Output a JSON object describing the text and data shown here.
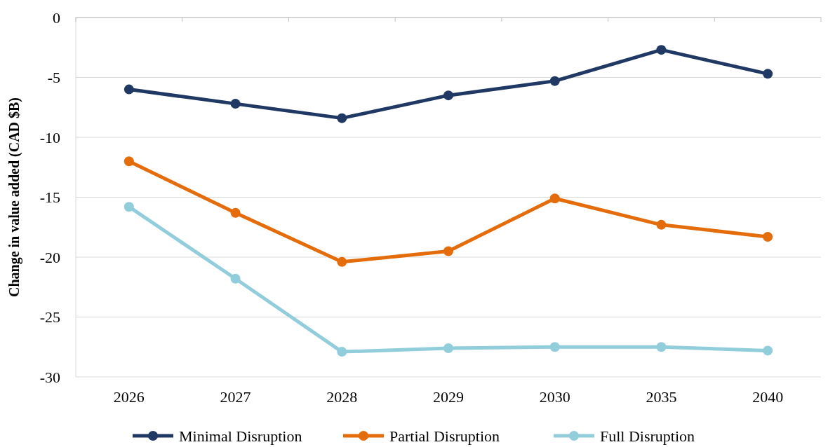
{
  "chart_data": {
    "type": "line",
    "ylabel": "Change in value added (CAD $B)",
    "categories": [
      "2026",
      "2027",
      "2028",
      "2029",
      "2030",
      "2035",
      "2040"
    ],
    "series": [
      {
        "name": "Minimal Disruption",
        "color": "#1f3864",
        "values": [
          -6.0,
          -7.2,
          -8.4,
          -6.5,
          -5.3,
          -2.7,
          -4.7
        ]
      },
      {
        "name": "Partial Disruption",
        "color": "#e46c0a",
        "values": [
          -12.0,
          -16.3,
          -20.4,
          -19.5,
          -15.1,
          -17.3,
          -18.3
        ]
      },
      {
        "name": "Full Disruption",
        "color": "#92cddc",
        "values": [
          -15.8,
          -21.8,
          -27.9,
          -27.6,
          -27.5,
          -27.5,
          -27.8
        ]
      }
    ],
    "ylim": [
      -30,
      0
    ],
    "yticks": [
      -30,
      -25,
      -20,
      -15,
      -10,
      -5,
      0
    ],
    "grid": "y",
    "legend": "bottom",
    "marker": "circle",
    "line_style": "solid"
  }
}
